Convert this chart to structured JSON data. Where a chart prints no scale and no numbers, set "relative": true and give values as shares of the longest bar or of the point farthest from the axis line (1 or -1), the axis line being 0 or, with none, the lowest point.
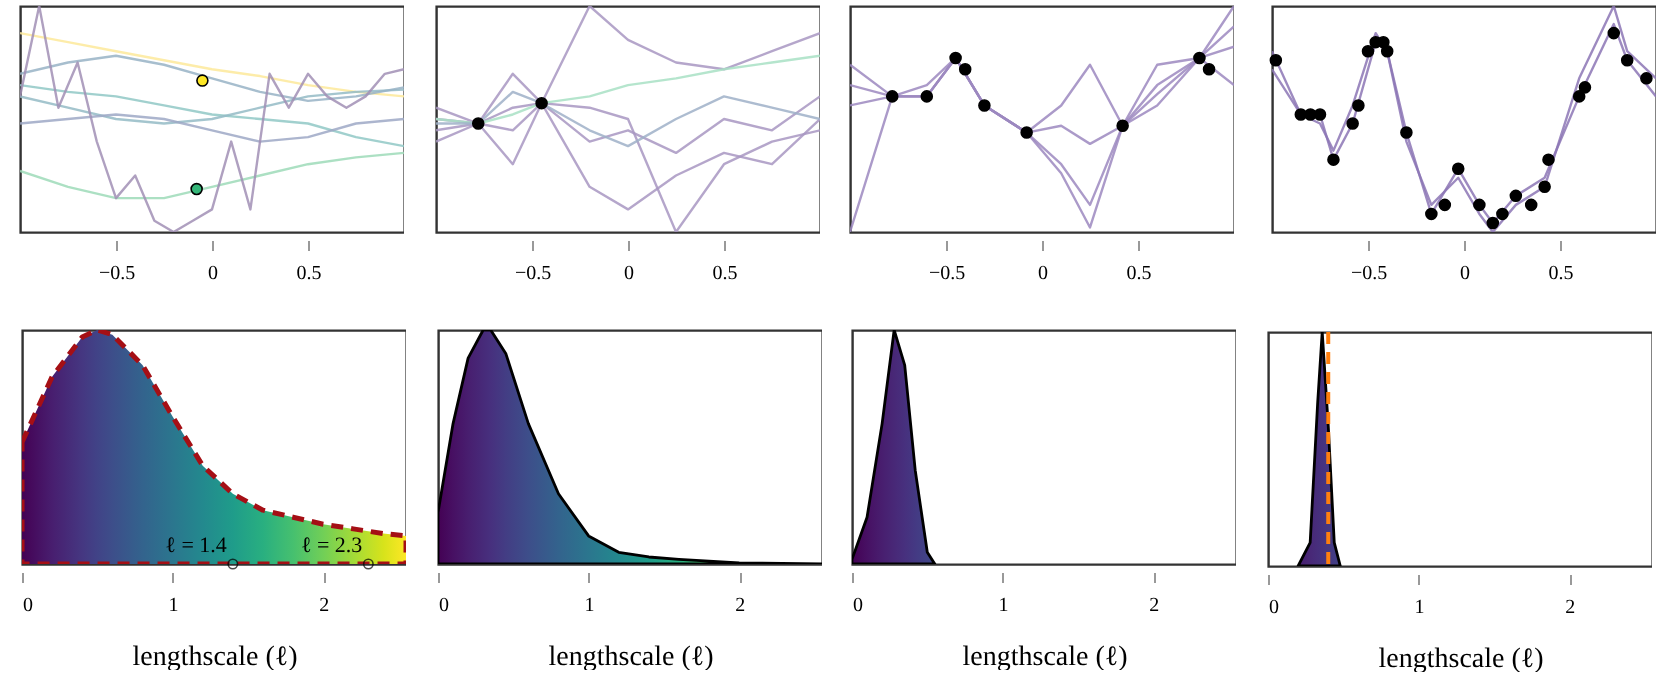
{
  "chart_data": [
    {
      "type": "line",
      "relative": true,
      "tick_labels": "x",
      "xlim": [
        -1,
        1
      ],
      "xticks": [
        -0.5,
        0,
        0.5
      ],
      "grid": false,
      "series": [
        {
          "color": "#fde99a",
          "x": [
            -1,
            -0.75,
            -0.5,
            -0.25,
            0,
            0.25,
            0.5,
            0.75,
            1
          ],
          "values": [
            0.88,
            0.84,
            0.8,
            0.76,
            0.72,
            0.69,
            0.65,
            0.62,
            0.6
          ]
        },
        {
          "color": "#9ddbb8",
          "x": [
            -1,
            -0.75,
            -0.5,
            -0.25,
            0,
            0.25,
            0.5,
            0.75,
            1
          ],
          "values": [
            0.27,
            0.2,
            0.15,
            0.15,
            0.2,
            0.25,
            0.3,
            0.33,
            0.35
          ]
        },
        {
          "color": "#90c8c5",
          "x": [
            -1,
            -0.75,
            -0.5,
            -0.25,
            0,
            0.25,
            0.5,
            0.75,
            1
          ],
          "values": [
            0.65,
            0.62,
            0.6,
            0.56,
            0.52,
            0.5,
            0.48,
            0.42,
            0.38
          ]
        },
        {
          "color": "#94bbc6",
          "x": [
            -1,
            -0.75,
            -0.5,
            -0.25,
            0,
            0.25,
            0.5,
            0.75,
            1
          ],
          "values": [
            0.6,
            0.55,
            0.5,
            0.48,
            0.5,
            0.55,
            0.6,
            0.62,
            0.63
          ]
        },
        {
          "color": "#9da8c5",
          "x": [
            -1,
            -0.75,
            -0.5,
            -0.25,
            0,
            0.25,
            0.5,
            0.75,
            1
          ],
          "values": [
            0.48,
            0.5,
            0.52,
            0.5,
            0.45,
            0.4,
            0.42,
            0.48,
            0.5
          ]
        },
        {
          "color": "#98b3c6",
          "x": [
            -1,
            -0.75,
            -0.5,
            -0.25,
            0,
            0.25,
            0.5,
            0.75,
            1
          ],
          "values": [
            0.7,
            0.75,
            0.78,
            0.74,
            0.68,
            0.62,
            0.58,
            0.6,
            0.64
          ]
        },
        {
          "color": "#a18fb5",
          "x": [
            -1,
            -0.9,
            -0.8,
            -0.7,
            -0.6,
            -0.5,
            -0.4,
            -0.3,
            -0.2,
            -0.1,
            0,
            0.1,
            0.2,
            0.3,
            0.4,
            0.5,
            0.6,
            0.7,
            0.8,
            0.9,
            1
          ],
          "values": [
            0.6,
            1.0,
            0.55,
            0.75,
            0.4,
            0.15,
            0.25,
            0.05,
            0.0,
            0.05,
            0.1,
            0.4,
            0.1,
            0.7,
            0.55,
            0.7,
            0.6,
            0.55,
            0.6,
            0.7,
            0.72
          ]
        },
        {
          "type": "scatter",
          "x": [
            -0.05,
            -0.08
          ],
          "values": [
            0.67,
            0.19
          ],
          "colors": [
            "#fde725",
            "#35b779"
          ]
        }
      ]
    },
    {
      "type": "line",
      "relative": true,
      "tick_labels": "x",
      "xlim": [
        -1,
        1
      ],
      "xticks": [
        -0.5,
        0,
        0.5
      ],
      "grid": false,
      "series": [
        {
          "color": "#a897c2",
          "x": [
            -1,
            -0.78,
            -0.6,
            -0.45,
            -0.2,
            0,
            0.25,
            0.5,
            0.75,
            1
          ],
          "values": [
            0.5,
            0.48,
            0.3,
            0.57,
            0.4,
            0.45,
            0.35,
            0.5,
            0.45,
            0.6
          ]
        },
        {
          "color": "#a897c2",
          "x": [
            -1,
            -0.78,
            -0.6,
            -0.45,
            -0.2,
            0,
            0.25,
            0.5,
            0.75,
            1
          ],
          "values": [
            0.45,
            0.48,
            0.7,
            0.57,
            1.0,
            0.85,
            0.75,
            0.72,
            0.8,
            0.88
          ]
        },
        {
          "color": "#a897c2",
          "x": [
            -1,
            -0.78,
            -0.6,
            -0.45,
            -0.2,
            0,
            0.25,
            0.5,
            0.75,
            1
          ],
          "values": [
            0.4,
            0.48,
            0.55,
            0.57,
            0.2,
            0.1,
            0.25,
            0.35,
            0.3,
            0.5
          ]
        },
        {
          "color": "#a897c2",
          "x": [
            -1,
            -0.78,
            -0.6,
            -0.45,
            -0.2,
            0,
            0.25,
            0.5,
            0.75,
            1
          ],
          "values": [
            0.55,
            0.48,
            0.45,
            0.57,
            0.55,
            0.5,
            0.0,
            0.3,
            0.4,
            0.45
          ]
        },
        {
          "color": "#a8e0c4",
          "x": [
            -1,
            -0.78,
            -0.6,
            -0.45,
            -0.2,
            0,
            0.25,
            0.5,
            0.75,
            1
          ],
          "values": [
            0.5,
            0.48,
            0.52,
            0.57,
            0.6,
            0.65,
            0.68,
            0.72,
            0.75,
            0.78
          ]
        },
        {
          "color": "#9fb0c8",
          "x": [
            -1,
            -0.78,
            -0.6,
            -0.45,
            -0.2,
            0,
            0.25,
            0.5,
            0.75,
            1
          ],
          "values": [
            0.48,
            0.48,
            0.62,
            0.57,
            0.45,
            0.38,
            0.5,
            0.6,
            0.55,
            0.5
          ]
        },
        {
          "type": "scatter",
          "color": "#000000",
          "x": [
            -0.78,
            -0.45
          ],
          "values": [
            0.48,
            0.57
          ]
        }
      ]
    },
    {
      "type": "line",
      "relative": true,
      "tick_labels": "x",
      "xlim": [
        -1,
        1
      ],
      "xticks": [
        -0.5,
        0,
        0.5
      ],
      "grid": false,
      "series": [
        {
          "color": "#9c88c0",
          "x": [
            -1,
            -0.78,
            -0.6,
            -0.45,
            -0.3,
            -0.08,
            0.1,
            0.25,
            0.42,
            0.6,
            0.82,
            1
          ],
          "values": [
            0.65,
            0.6,
            0.6,
            0.77,
            0.56,
            0.44,
            0.3,
            0.12,
            0.47,
            0.65,
            0.77,
            0.91
          ]
        },
        {
          "color": "#9c88c0",
          "x": [
            -1,
            -0.78,
            -0.6,
            -0.45,
            -0.3,
            -0.08,
            0.1,
            0.25,
            0.42,
            0.6,
            0.82,
            1
          ],
          "values": [
            0.56,
            0.6,
            0.6,
            0.77,
            0.56,
            0.44,
            0.56,
            0.74,
            0.47,
            0.56,
            0.77,
            1.0
          ]
        },
        {
          "color": "#9c88c0",
          "x": [
            -1,
            -0.78,
            -0.6,
            -0.45,
            -0.3,
            -0.08,
            0.1,
            0.25,
            0.42,
            0.6,
            0.82,
            1
          ],
          "values": [
            0,
            0.6,
            0.6,
            0.77,
            0.56,
            0.44,
            0.26,
            0.02,
            0.47,
            0.74,
            0.77,
            0.82
          ]
        },
        {
          "color": "#9c88c0",
          "x": [
            -1,
            -0.78,
            -0.6,
            -0.45,
            -0.3,
            -0.08,
            0.1,
            0.25,
            0.42,
            0.6,
            0.82,
            1
          ],
          "values": [
            0.74,
            0.6,
            0.65,
            0.77,
            0.56,
            0.44,
            0.47,
            0.39,
            0.47,
            0.61,
            0.77,
            0.65
          ]
        },
        {
          "type": "scatter",
          "color": "#000000",
          "x": [
            -0.78,
            -0.6,
            -0.45,
            -0.4,
            -0.3,
            -0.08,
            0.42,
            0.82,
            0.87
          ],
          "values": [
            0.6,
            0.6,
            0.77,
            0.72,
            0.56,
            0.44,
            0.47,
            0.77,
            0.72
          ]
        }
      ]
    },
    {
      "type": "line",
      "relative": true,
      "tick_labels": "x",
      "xlim": [
        -1,
        1
      ],
      "xticks": [
        -0.5,
        0,
        0.5
      ],
      "grid": false,
      "series": [
        {
          "color": "#8c75b5",
          "x": [
            -1,
            -0.85,
            -0.75,
            -0.68,
            -0.58,
            -0.46,
            -0.4,
            -0.3,
            -0.17,
            -0.03,
            0.08,
            0.15,
            0.27,
            0.42,
            0.6,
            0.78,
            0.85,
            1
          ],
          "values": [
            0.8,
            0.52,
            0.52,
            0.32,
            0.48,
            0.84,
            0.8,
            0.44,
            0.08,
            0.28,
            0.12,
            0.04,
            0.16,
            0.24,
            0.6,
            0.92,
            0.76,
            0.6
          ]
        },
        {
          "color": "#8c75b5",
          "x": [
            -1,
            -0.85,
            -0.75,
            -0.68,
            -0.58,
            -0.46,
            -0.4,
            -0.3,
            -0.17,
            -0.03,
            0.08,
            0.15,
            0.27,
            0.42,
            0.6,
            0.78,
            0.85,
            1
          ],
          "values": [
            0.72,
            0.52,
            0.48,
            0.36,
            0.56,
            0.88,
            0.8,
            0.4,
            0.12,
            0.24,
            0.08,
            0,
            0.12,
            0.2,
            0.68,
            1.0,
            0.8,
            0.68
          ]
        },
        {
          "type": "scatter",
          "color": "#000000",
          "x": [
            -0.98,
            -0.85,
            -0.8,
            -0.75,
            -0.68,
            -0.58,
            -0.55,
            -0.5,
            -0.46,
            -0.42,
            -0.4,
            -0.3,
            -0.17,
            -0.1,
            -0.03,
            0.08,
            0.15,
            0.2,
            0.27,
            0.35,
            0.42,
            0.44,
            0.6,
            0.63,
            0.78,
            0.85,
            0.95
          ],
          "values": [
            0.76,
            0.52,
            0.52,
            0.52,
            0.32,
            0.48,
            0.56,
            0.8,
            0.84,
            0.84,
            0.8,
            0.44,
            0.08,
            0.12,
            0.28,
            0.12,
            0.04,
            0.08,
            0.16,
            0.12,
            0.2,
            0.32,
            0.6,
            0.64,
            0.88,
            0.76,
            0.68
          ]
        }
      ]
    },
    {
      "type": "area",
      "relative": true,
      "tick_labels": "x",
      "xlabel": "lengthscale (ℓ)",
      "xlim": [
        0,
        2.55
      ],
      "xticks": [
        0,
        1,
        2
      ],
      "grid": false,
      "line_style": "dashed",
      "series": [
        {
          "color": "#a50f15",
          "x": [
            0,
            0.2,
            0.4,
            0.5,
            0.6,
            0.8,
            1.0,
            1.2,
            1.4,
            1.6,
            1.8,
            2.0,
            2.2,
            2.4,
            2.55
          ],
          "values": [
            0.52,
            0.8,
            0.97,
            1.0,
            0.98,
            0.85,
            0.63,
            0.42,
            0.3,
            0.23,
            0.2,
            0.17,
            0.15,
            0.13,
            0.12
          ]
        }
      ],
      "annotations": [
        {
          "text": "ℓ = 1.4",
          "x": 1.4,
          "y": 0
        },
        {
          "text": "ℓ = 2.3",
          "x": 2.3,
          "y": 0
        }
      ]
    },
    {
      "type": "area",
      "relative": true,
      "tick_labels": "x",
      "xlabel": "lengthscale (ℓ)",
      "xlim": [
        0,
        2.55
      ],
      "xticks": [
        0,
        1,
        2
      ],
      "grid": false,
      "series": [
        {
          "color": "#000000",
          "x": [
            0,
            0.1,
            0.2,
            0.3,
            0.35,
            0.45,
            0.6,
            0.8,
            1.0,
            1.2,
            1.4,
            1.6,
            2.0,
            2.55
          ],
          "values": [
            0.22,
            0.6,
            0.88,
            1.0,
            1.0,
            0.9,
            0.6,
            0.3,
            0.12,
            0.05,
            0.03,
            0.02,
            0.005,
            0
          ]
        }
      ]
    },
    {
      "type": "area",
      "relative": true,
      "tick_labels": "x",
      "xlabel": "lengthscale (ℓ)",
      "xlim": [
        0,
        2.55
      ],
      "xticks": [
        0,
        1,
        2
      ],
      "grid": false,
      "series": [
        {
          "color": "#000000",
          "x": [
            0,
            0.1,
            0.2,
            0.28,
            0.35,
            0.42,
            0.5,
            0.55
          ],
          "values": [
            0.02,
            0.2,
            0.6,
            1.0,
            0.85,
            0.4,
            0.05,
            0
          ]
        }
      ]
    },
    {
      "type": "area",
      "relative": true,
      "tick_labels": "x",
      "xlabel": "lengthscale (ℓ)",
      "xlim": [
        0,
        2.55
      ],
      "xticks": [
        0,
        1,
        2
      ],
      "grid": false,
      "series": [
        {
          "color": "#000000",
          "x": [
            0.2,
            0.28,
            0.33,
            0.36,
            0.4,
            0.44,
            0.48
          ],
          "values": [
            0,
            0.1,
            0.7,
            1.0,
            0.6,
            0.1,
            0
          ]
        }
      ],
      "ref_lines": [
        {
          "axis": "x",
          "value": 0.4,
          "color": "#ff7f0e",
          "line_style": "dashed"
        }
      ]
    }
  ]
}
